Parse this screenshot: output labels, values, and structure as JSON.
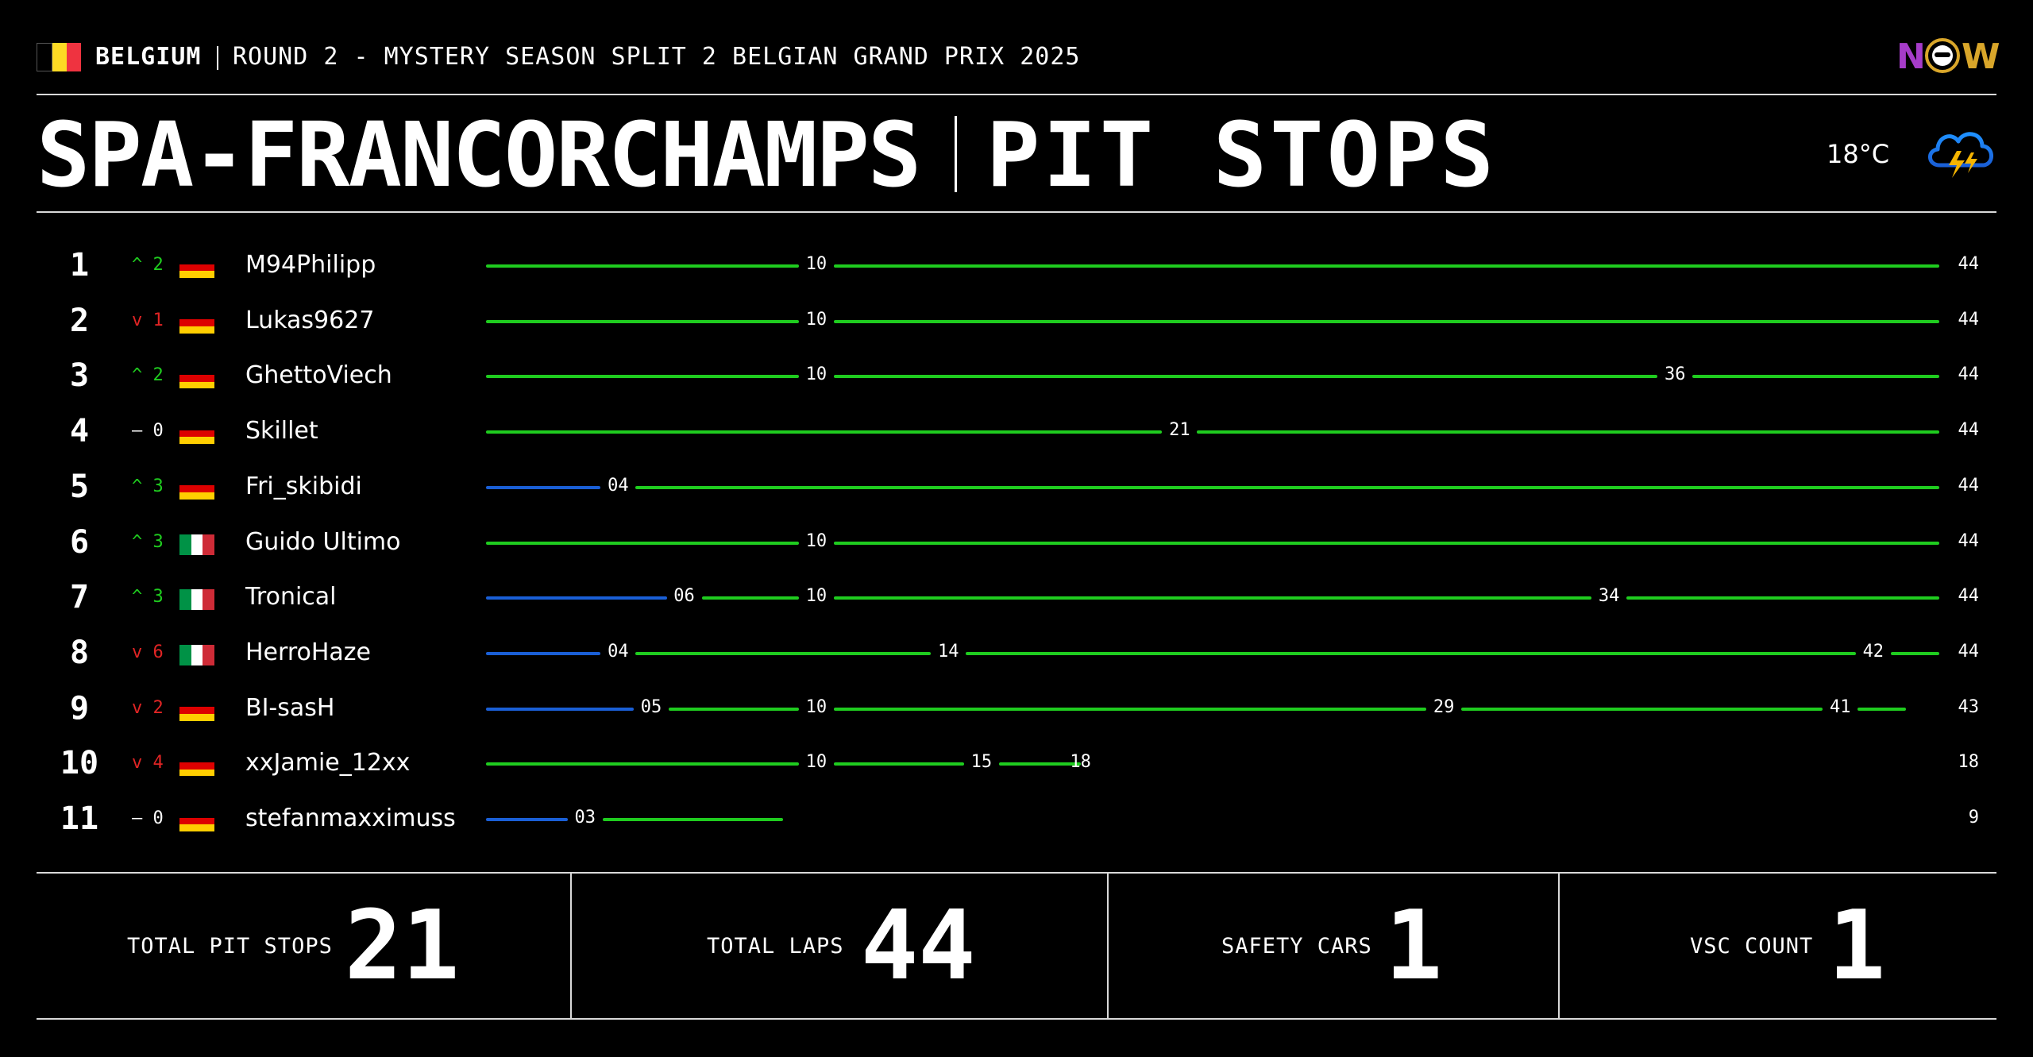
{
  "header": {
    "country": "BELGIUM",
    "round": "ROUND 2 - MYSTERY SEASON SPLIT 2 BELGIAN GRAND PRIX 2025",
    "logo_left": "N",
    "logo_right": "W",
    "track": "SPA-FRANCORCHAMPS",
    "page_title": "PIT STOPS",
    "temperature": "18°C",
    "weather_icon": "thunderstorm-cloud-icon"
  },
  "colors": {
    "green_tyre": "#1fcc1f",
    "blue_tyre": "#1a5fd6",
    "up": "#1fcc1f",
    "down": "#e02424"
  },
  "total_race_laps": 44,
  "rows": [
    {
      "pos": "1",
      "dir": "up",
      "change": "2",
      "flag": "de",
      "driver": "M94Philipp",
      "total": "44",
      "stints": [
        {
          "c": "green",
          "end": 10
        },
        {
          "c": "green",
          "end": 44
        }
      ],
      "stops": [
        "10"
      ]
    },
    {
      "pos": "2",
      "dir": "down",
      "change": "1",
      "flag": "de",
      "driver": "Lukas9627",
      "total": "44",
      "stints": [
        {
          "c": "green",
          "end": 10
        },
        {
          "c": "green",
          "end": 44
        }
      ],
      "stops": [
        "10"
      ]
    },
    {
      "pos": "3",
      "dir": "up",
      "change": "2",
      "flag": "de",
      "driver": "GhettoViech",
      "total": "44",
      "stints": [
        {
          "c": "green",
          "end": 10
        },
        {
          "c": "green",
          "end": 36
        },
        {
          "c": "green",
          "end": 44
        }
      ],
      "stops": [
        "10",
        "36"
      ]
    },
    {
      "pos": "4",
      "dir": "none",
      "change": "0",
      "flag": "de",
      "driver": "Skillet",
      "total": "44",
      "stints": [
        {
          "c": "green",
          "end": 21
        },
        {
          "c": "green",
          "end": 44
        }
      ],
      "stops": [
        "21"
      ]
    },
    {
      "pos": "5",
      "dir": "up",
      "change": "3",
      "flag": "de",
      "driver": "Fri_skibidi",
      "total": "44",
      "stints": [
        {
          "c": "blue",
          "end": 4
        },
        {
          "c": "green",
          "end": 44
        }
      ],
      "stops": [
        "04"
      ]
    },
    {
      "pos": "6",
      "dir": "up",
      "change": "3",
      "flag": "it",
      "driver": "Guido Ultimo",
      "total": "44",
      "stints": [
        {
          "c": "green",
          "end": 10
        },
        {
          "c": "green",
          "end": 44
        }
      ],
      "stops": [
        "10"
      ]
    },
    {
      "pos": "7",
      "dir": "up",
      "change": "3",
      "flag": "it",
      "driver": "Tronical",
      "total": "44",
      "stints": [
        {
          "c": "blue",
          "end": 6
        },
        {
          "c": "green",
          "end": 10
        },
        {
          "c": "green",
          "end": 34
        },
        {
          "c": "green",
          "end": 44
        }
      ],
      "stops": [
        "06",
        "10",
        "34"
      ]
    },
    {
      "pos": "8",
      "dir": "down",
      "change": "6",
      "flag": "it",
      "driver": "HerroHaze",
      "total": "44",
      "stints": [
        {
          "c": "blue",
          "end": 4
        },
        {
          "c": "green",
          "end": 14
        },
        {
          "c": "green",
          "end": 42
        },
        {
          "c": "green",
          "end": 44
        }
      ],
      "stops": [
        "04",
        "14",
        "42"
      ]
    },
    {
      "pos": "9",
      "dir": "down",
      "change": "2",
      "flag": "de",
      "driver": "BI-sasH",
      "total": "43",
      "stints": [
        {
          "c": "blue",
          "end": 5
        },
        {
          "c": "green",
          "end": 10
        },
        {
          "c": "green",
          "end": 29
        },
        {
          "c": "green",
          "end": 41
        },
        {
          "c": "green",
          "end": 43
        }
      ],
      "stops": [
        "05",
        "10",
        "29",
        "41"
      ]
    },
    {
      "pos": "10",
      "dir": "down",
      "change": "4",
      "flag": "de",
      "driver": "xxJamie_12xx",
      "total": "18",
      "stints": [
        {
          "c": "green",
          "end": 10
        },
        {
          "c": "green",
          "end": 15
        },
        {
          "c": "green",
          "end": 18
        }
      ],
      "stops": [
        "10",
        "15",
        "18"
      ]
    },
    {
      "pos": "11",
      "dir": "none",
      "change": "0",
      "flag": "de",
      "driver": "stefanmaxximuss",
      "total": "9",
      "stints": [
        {
          "c": "blue",
          "end": 3
        },
        {
          "c": "green",
          "end": 9
        }
      ],
      "stops": [
        "03"
      ]
    }
  ],
  "stats": [
    {
      "label": "TOTAL PIT STOPS",
      "value": "21"
    },
    {
      "label": "TOTAL LAPS",
      "value": "44"
    },
    {
      "label": "SAFETY CARS",
      "value": "1"
    },
    {
      "label": "VSC COUNT",
      "value": "1"
    }
  ]
}
